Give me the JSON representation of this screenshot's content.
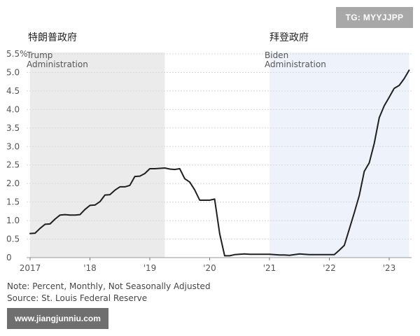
{
  "watermarks": {
    "telegram": "TG: MYYJJPP",
    "website": "www.jiangjunniu.com"
  },
  "annotations": {
    "trump_cn": "特朗普政府",
    "biden_cn": "拜登政府",
    "trump_en_line1": "Trump",
    "trump_en_line2": "Administration",
    "biden_en_line1": "Biden",
    "biden_en_line2": "Administration"
  },
  "footer": {
    "note": "Note: Percent, Monthly, Not Seasonally Adjusted",
    "source": "Source: St. Louis Federal Reserve"
  },
  "colors": {
    "line": "#1f1f1f",
    "trump_shade": "#ebebeb",
    "biden_shade": "#eef3fb",
    "grid": "#d7d7d7",
    "axis_text": "#555555"
  },
  "chart_data": {
    "type": "line",
    "title": "",
    "xlabel": "",
    "ylabel": "",
    "ylim": [
      0,
      5.5
    ],
    "xlim": [
      "2017-01",
      "2023-05"
    ],
    "y_ticks": [
      "0",
      "0.5",
      "1.0",
      "1.5",
      "2.0",
      "2.5",
      "3.0",
      "3.5",
      "4.0",
      "4.5",
      "5.0",
      "5.5%"
    ],
    "y_tick_values": [
      0,
      0.5,
      1.0,
      1.5,
      2.0,
      2.5,
      3.0,
      3.5,
      4.0,
      4.5,
      5.0,
      5.5
    ],
    "x_ticks": [
      "2017",
      "'18",
      "'19",
      "'20",
      "'21",
      "'22",
      "'23"
    ],
    "x_tick_values": [
      "2017-01",
      "2018-01",
      "2019-01",
      "2020-01",
      "2021-01",
      "2022-01",
      "2023-01"
    ],
    "grid": true,
    "shaded_regions": [
      {
        "start": "2017-01",
        "end": "2019-04"
      },
      {
        "start": "2021-01",
        "end": "2023-05"
      }
    ],
    "series": [
      {
        "points": [
          [
            "2017-01",
            0.65
          ],
          [
            "2017-02",
            0.66
          ],
          [
            "2017-03",
            0.79
          ],
          [
            "2017-04",
            0.9
          ],
          [
            "2017-05",
            0.91
          ],
          [
            "2017-06",
            1.04
          ],
          [
            "2017-07",
            1.15
          ],
          [
            "2017-08",
            1.16
          ],
          [
            "2017-09",
            1.15
          ],
          [
            "2017-10",
            1.15
          ],
          [
            "2017-11",
            1.16
          ],
          [
            "2017-12",
            1.3
          ],
          [
            "2018-01",
            1.41
          ],
          [
            "2018-02",
            1.42
          ],
          [
            "2018-03",
            1.51
          ],
          [
            "2018-04",
            1.69
          ],
          [
            "2018-05",
            1.7
          ],
          [
            "2018-06",
            1.82
          ],
          [
            "2018-07",
            1.91
          ],
          [
            "2018-08",
            1.91
          ],
          [
            "2018-09",
            1.95
          ],
          [
            "2018-10",
            2.19
          ],
          [
            "2018-11",
            2.2
          ],
          [
            "2018-12",
            2.27
          ],
          [
            "2019-01",
            2.4
          ],
          [
            "2019-02",
            2.4
          ],
          [
            "2019-03",
            2.41
          ],
          [
            "2019-04",
            2.42
          ],
          [
            "2019-05",
            2.39
          ],
          [
            "2019-06",
            2.38
          ],
          [
            "2019-07",
            2.4
          ],
          [
            "2019-08",
            2.13
          ],
          [
            "2019-09",
            2.04
          ],
          [
            "2019-10",
            1.83
          ],
          [
            "2019-11",
            1.55
          ],
          [
            "2019-12",
            1.55
          ],
          [
            "2020-01",
            1.55
          ],
          [
            "2020-02",
            1.58
          ],
          [
            "2020-03",
            0.65
          ],
          [
            "2020-04",
            0.05
          ],
          [
            "2020-05",
            0.05
          ],
          [
            "2020-06",
            0.08
          ],
          [
            "2020-07",
            0.09
          ],
          [
            "2020-08",
            0.1
          ],
          [
            "2020-09",
            0.09
          ],
          [
            "2020-10",
            0.09
          ],
          [
            "2020-11",
            0.09
          ],
          [
            "2020-12",
            0.09
          ],
          [
            "2021-01",
            0.09
          ],
          [
            "2021-02",
            0.08
          ],
          [
            "2021-03",
            0.07
          ],
          [
            "2021-04",
            0.07
          ],
          [
            "2021-05",
            0.06
          ],
          [
            "2021-06",
            0.08
          ],
          [
            "2021-07",
            0.1
          ],
          [
            "2021-08",
            0.09
          ],
          [
            "2021-09",
            0.08
          ],
          [
            "2021-10",
            0.08
          ],
          [
            "2021-11",
            0.08
          ],
          [
            "2021-12",
            0.08
          ],
          [
            "2022-01",
            0.08
          ],
          [
            "2022-02",
            0.08
          ],
          [
            "2022-03",
            0.2
          ],
          [
            "2022-04",
            0.33
          ],
          [
            "2022-05",
            0.77
          ],
          [
            "2022-06",
            1.21
          ],
          [
            "2022-07",
            1.68
          ],
          [
            "2022-08",
            2.33
          ],
          [
            "2022-09",
            2.56
          ],
          [
            "2022-10",
            3.08
          ],
          [
            "2022-11",
            3.78
          ],
          [
            "2022-12",
            4.1
          ],
          [
            "2023-01",
            4.33
          ],
          [
            "2023-02",
            4.57
          ],
          [
            "2023-03",
            4.65
          ],
          [
            "2023-04",
            4.83
          ],
          [
            "2023-05",
            5.06
          ]
        ]
      }
    ]
  }
}
